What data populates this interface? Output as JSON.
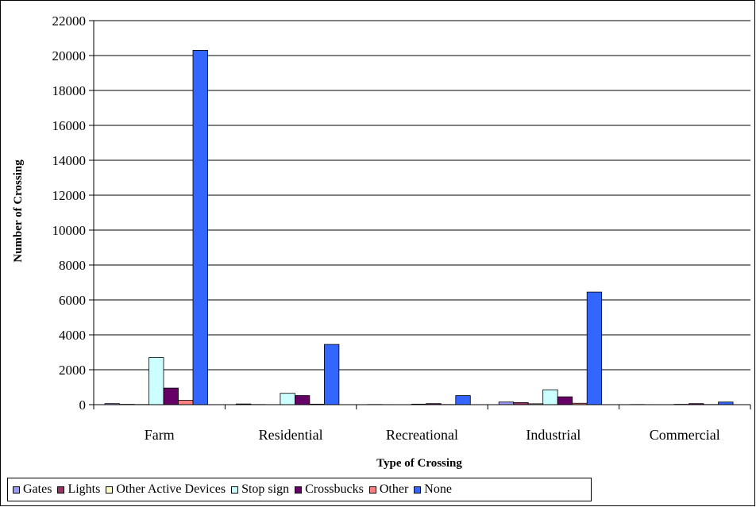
{
  "chart_data": {
    "type": "bar",
    "title": "",
    "xlabel": "Type of Crossing",
    "ylabel": "Number of Crossing",
    "ylim": [
      0,
      22000
    ],
    "yticks": [
      0,
      2000,
      4000,
      6000,
      8000,
      10000,
      12000,
      14000,
      16000,
      18000,
      20000,
      22000
    ],
    "grid": "horizontal",
    "legend_position": "bottom",
    "categories": [
      "Farm",
      "Residential",
      "Recreational",
      "Industrial",
      "Commercial"
    ],
    "series": [
      {
        "name": "Gates",
        "color": "#9999FF",
        "values": [
          60,
          40,
          10,
          150,
          10
        ]
      },
      {
        "name": "Lights",
        "color": "#993366",
        "values": [
          20,
          10,
          5,
          120,
          5
        ]
      },
      {
        "name": "Other Active Devices",
        "color": "#FFFFCC",
        "values": [
          10,
          5,
          0,
          50,
          0
        ]
      },
      {
        "name": "Stop sign",
        "color": "#CCFFFF",
        "values": [
          2700,
          650,
          30,
          850,
          20
        ]
      },
      {
        "name": "Crossbucks",
        "color": "#660066",
        "values": [
          950,
          520,
          60,
          450,
          60
        ]
      },
      {
        "name": "Other",
        "color": "#FF8080",
        "values": [
          250,
          30,
          10,
          80,
          10
        ]
      },
      {
        "name": "None",
        "color": "#3366FF",
        "values": [
          20300,
          3450,
          520,
          6450,
          150
        ]
      }
    ]
  }
}
